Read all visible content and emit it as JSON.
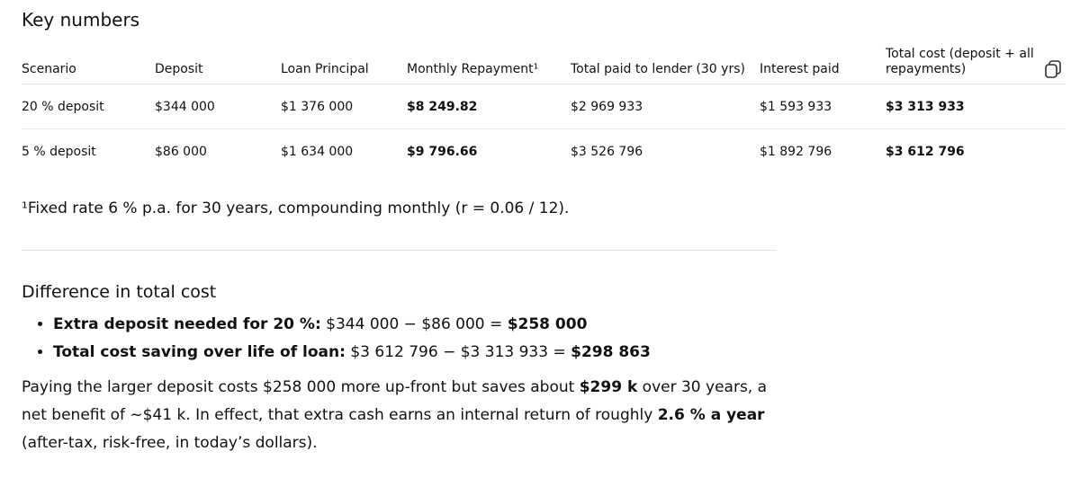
{
  "title": "Key numbers",
  "table": {
    "headers": [
      "Scenario",
      "Deposit",
      "Loan Principal",
      "Monthly Repayment¹",
      "Total paid to lender (30 yrs)",
      "Interest paid",
      "Total cost (deposit + all repayments)"
    ],
    "rows": [
      [
        "20 % deposit",
        "$344 000",
        "$1 376 000",
        "$8 249.82",
        "$2 969 933",
        "$1 593 933",
        "$3 313 933"
      ],
      [
        "5 % deposit",
        "$86 000",
        "$1 634 000",
        "$9 796.66",
        "$3 526 796",
        "$1 892 796",
        "$3 612 796"
      ]
    ]
  },
  "footnote": "¹Fixed rate 6 % p.a. for 30 years, compounding monthly (r = 0.06 / 12).",
  "difference": {
    "heading": "Difference in total cost",
    "bullets": [
      {
        "label": "Extra deposit needed for 20 %:",
        "expression": "$344 000 − $86 000 =",
        "result": "$258 000"
      },
      {
        "label": "Total cost saving over life of loan:",
        "expression": "$3 612 796 − $3 313 933 =",
        "result": "$298 863"
      }
    ]
  },
  "summary": {
    "parts": [
      "Paying the larger deposit costs $258 000 more up-front but saves about",
      "$299 k",
      "over 30 years, a net benefit of ~$41 k. In effect, that extra cash earns an internal return of roughly",
      "2.6 % a year",
      "(after-tax, risk-free, in today’s dollars)."
    ]
  }
}
